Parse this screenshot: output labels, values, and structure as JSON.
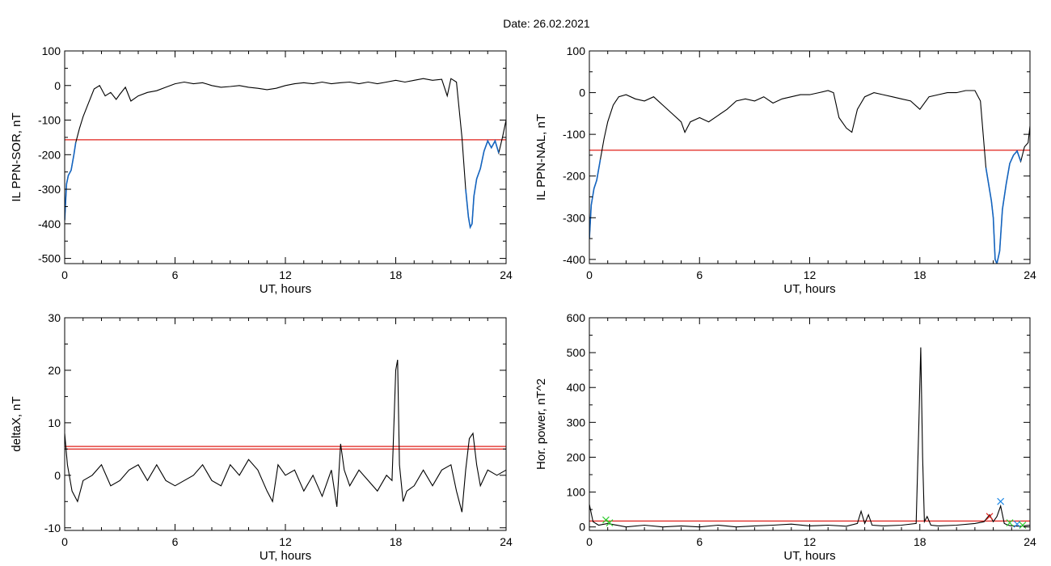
{
  "date_label": "Date:  26.02.2021",
  "colors": {
    "trace": "#000000",
    "threshold": "#e0201a",
    "highlight": "#1565c0",
    "marker_red": "#e0201a",
    "marker_green": "#33cc33",
    "marker_blue": "#1e88e5"
  },
  "chart_data": [
    {
      "type": "line",
      "title": "",
      "xlabel": "UT, hours",
      "ylabel": "IL PPN-SOR, nT",
      "xlim": [
        0,
        24
      ],
      "ylim": [
        -515,
        100
      ],
      "x_ticks": [
        0,
        6,
        12,
        18,
        24
      ],
      "y_ticks": [
        100,
        0,
        -100,
        -200,
        -300,
        -400,
        -500
      ],
      "threshold": -157,
      "series": [
        {
          "x": [
            0,
            0.1,
            0.2,
            0.35,
            0.5,
            0.6,
            0.8,
            1.0,
            1.3,
            1.6,
            1.9,
            2.2,
            2.5,
            2.8,
            3.0,
            3.3,
            3.6,
            4.0,
            4.5,
            5.0,
            5.5,
            6.0,
            6.5,
            7.0,
            7.5,
            8.0,
            8.5,
            9.0,
            9.5,
            10.0,
            10.5,
            11.0,
            11.5,
            12.0,
            12.5,
            13.0,
            13.5,
            14.0,
            14.5,
            15.0,
            15.5,
            16.0,
            16.5,
            17.0,
            17.5,
            18.0,
            18.5,
            19.0,
            19.5,
            20.0,
            20.5,
            20.8,
            21.0,
            21.3,
            21.6,
            21.8,
            21.95,
            22.05,
            22.15,
            22.25,
            22.4,
            22.6,
            22.8,
            23.0,
            23.2,
            23.4,
            23.6,
            23.8,
            24.0
          ],
          "values": [
            -390,
            -285,
            -260,
            -245,
            -200,
            -165,
            -125,
            -90,
            -50,
            -10,
            0,
            -30,
            -20,
            -40,
            -25,
            -5,
            -45,
            -30,
            -20,
            -15,
            -5,
            5,
            10,
            5,
            8,
            0,
            -5,
            -3,
            0,
            -5,
            -8,
            -12,
            -8,
            0,
            5,
            8,
            5,
            10,
            5,
            8,
            10,
            5,
            10,
            5,
            10,
            15,
            10,
            15,
            20,
            15,
            18,
            -30,
            20,
            10,
            -150,
            -300,
            -380,
            -410,
            -400,
            -320,
            -270,
            -240,
            -190,
            -160,
            -180,
            -160,
            -195,
            -150,
            -100
          ]
        }
      ]
    },
    {
      "type": "line",
      "title": "",
      "xlabel": "UT, hours",
      "ylabel": "IL PPN-NAL, nT",
      "xlim": [
        0,
        24
      ],
      "ylim": [
        -410,
        100
      ],
      "x_ticks": [
        0,
        6,
        12,
        18,
        24
      ],
      "y_ticks": [
        100,
        0,
        -100,
        -200,
        -300,
        -400
      ],
      "threshold": -138,
      "series": [
        {
          "x": [
            0,
            0.1,
            0.25,
            0.4,
            0.6,
            0.8,
            1.0,
            1.3,
            1.6,
            2.0,
            2.5,
            3.0,
            3.5,
            4.0,
            4.5,
            5.0,
            5.2,
            5.5,
            6.0,
            6.5,
            7.0,
            7.5,
            8.0,
            8.5,
            9.0,
            9.5,
            10.0,
            10.5,
            11.0,
            11.5,
            12.0,
            12.5,
            13.0,
            13.3,
            13.6,
            14.0,
            14.3,
            14.6,
            15.0,
            15.5,
            16.0,
            16.5,
            17.0,
            17.5,
            18.0,
            18.5,
            19.0,
            19.5,
            20.0,
            20.5,
            21.0,
            21.3,
            21.6,
            21.9,
            22.0,
            22.1,
            22.2,
            22.35,
            22.5,
            22.7,
            22.9,
            23.1,
            23.3,
            23.5,
            23.7,
            23.9,
            24.0
          ],
          "values": [
            -350,
            -270,
            -230,
            -210,
            -160,
            -110,
            -70,
            -30,
            -10,
            -5,
            -15,
            -20,
            -10,
            -30,
            -50,
            -70,
            -95,
            -70,
            -60,
            -70,
            -55,
            -40,
            -20,
            -15,
            -20,
            -10,
            -25,
            -15,
            -10,
            -5,
            -5,
            0,
            5,
            0,
            -60,
            -85,
            -95,
            -40,
            -10,
            0,
            -5,
            -10,
            -15,
            -20,
            -40,
            -10,
            -5,
            0,
            0,
            5,
            5,
            -20,
            -180,
            -260,
            -300,
            -400,
            -410,
            -380,
            -280,
            -220,
            -170,
            -150,
            -140,
            -165,
            -130,
            -120,
            -80
          ]
        }
      ]
    },
    {
      "type": "line",
      "title": "",
      "xlabel": "UT, hours",
      "ylabel": "deltaX, nT",
      "xlim": [
        0,
        24
      ],
      "ylim": [
        -10.5,
        30
      ],
      "x_ticks": [
        0,
        6,
        12,
        18,
        24
      ],
      "y_ticks": [
        30,
        20,
        10,
        0,
        -10
      ],
      "thresholds": [
        5.5,
        5
      ],
      "series": [
        {
          "x": [
            0,
            0.15,
            0.4,
            0.7,
            1.0,
            1.5,
            2.0,
            2.5,
            3.0,
            3.5,
            4.0,
            4.5,
            5.0,
            5.5,
            6.0,
            6.5,
            7.0,
            7.5,
            8.0,
            8.5,
            9.0,
            9.5,
            10.0,
            10.5,
            11.0,
            11.3,
            11.6,
            12.0,
            12.5,
            13.0,
            13.5,
            14.0,
            14.5,
            14.8,
            15.0,
            15.2,
            15.5,
            16.0,
            16.5,
            17.0,
            17.5,
            17.8,
            18.0,
            18.1,
            18.2,
            18.4,
            18.6,
            19.0,
            19.5,
            20.0,
            20.5,
            21.0,
            21.3,
            21.6,
            21.8,
            22.0,
            22.2,
            22.4,
            22.6,
            23.0,
            23.5,
            24.0
          ],
          "values": [
            8,
            2,
            -3,
            -5,
            -1,
            0,
            2,
            -2,
            -1,
            1,
            2,
            -1,
            2,
            -1,
            -2,
            -1,
            0,
            2,
            -1,
            -2,
            2,
            0,
            3,
            1,
            -3,
            -5,
            2,
            0,
            1,
            -3,
            0,
            -4,
            1,
            -6,
            6,
            1,
            -2,
            1,
            -1,
            -3,
            0,
            -1,
            20,
            22,
            2,
            -5,
            -3,
            -2,
            1,
            -2,
            1,
            2,
            -3,
            -7,
            1,
            7,
            8,
            2,
            -2,
            1,
            0,
            1
          ]
        }
      ]
    },
    {
      "type": "line",
      "title": "",
      "xlabel": "UT, hours",
      "ylabel": "Hor. power, nT^2",
      "xlim": [
        0,
        24
      ],
      "ylim": [
        -10,
        600
      ],
      "x_ticks": [
        0,
        6,
        12,
        18,
        24
      ],
      "y_ticks": [
        600,
        500,
        400,
        300,
        200,
        100,
        0
      ],
      "threshold": 17,
      "series": [
        {
          "x": [
            0,
            0.2,
            0.5,
            1.0,
            2.0,
            3.0,
            4.0,
            5.0,
            6.0,
            7.0,
            8.0,
            9.0,
            10.0,
            11.0,
            12.0,
            13.0,
            14.0,
            14.6,
            14.8,
            15.0,
            15.2,
            15.4,
            16.0,
            17.0,
            17.8,
            17.95,
            18.05,
            18.15,
            18.25,
            18.4,
            18.6,
            19.0,
            20.0,
            21.0,
            21.5,
            21.8,
            22.0,
            22.2,
            22.4,
            22.6,
            22.8,
            23.0,
            23.5,
            24.0
          ],
          "values": [
            65,
            15,
            5,
            10,
            0,
            5,
            0,
            3,
            0,
            5,
            0,
            3,
            5,
            8,
            3,
            5,
            2,
            10,
            45,
            10,
            35,
            5,
            3,
            5,
            10,
            300,
            515,
            200,
            15,
            30,
            5,
            3,
            5,
            10,
            15,
            35,
            15,
            30,
            60,
            10,
            5,
            3,
            2,
            5
          ]
        }
      ],
      "markers": [
        {
          "x": 0.9,
          "y": 20,
          "color": "green"
        },
        {
          "x": 1.1,
          "y": 12,
          "color": "green"
        },
        {
          "x": 21.8,
          "y": 30,
          "color": "red"
        },
        {
          "x": 22.4,
          "y": 73,
          "color": "blue"
        },
        {
          "x": 22.9,
          "y": 12,
          "color": "green"
        },
        {
          "x": 23.3,
          "y": 8,
          "color": "blue"
        },
        {
          "x": 23.6,
          "y": 5,
          "color": "green"
        }
      ]
    }
  ]
}
